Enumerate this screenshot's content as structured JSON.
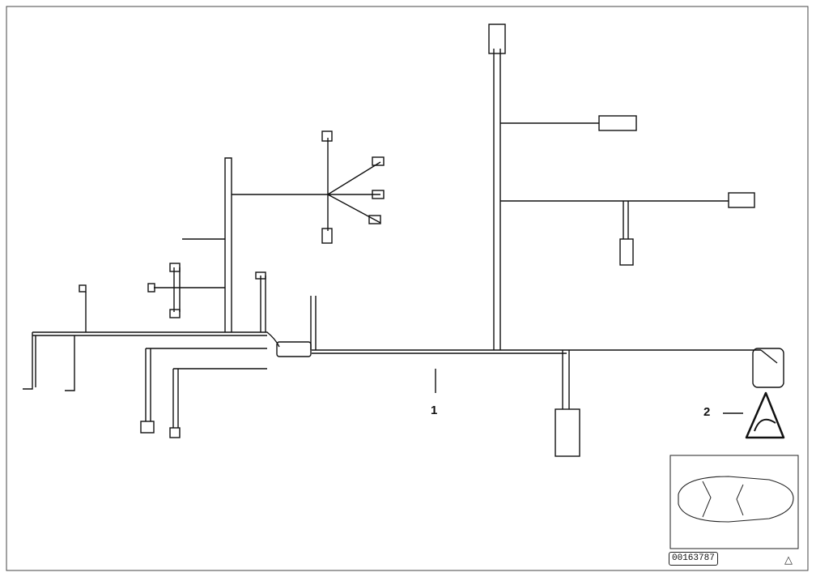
{
  "labels": {
    "part_1": "1",
    "part_2": "2"
  },
  "reference_number": "00163787",
  "icons": {
    "warning_triangle": "warning-sign-icon",
    "car_thumbnail": "car-top-view-icon",
    "corner_mark": "triangle-outline-icon"
  },
  "colors": {
    "line": "#111111",
    "background": "#ffffff"
  }
}
